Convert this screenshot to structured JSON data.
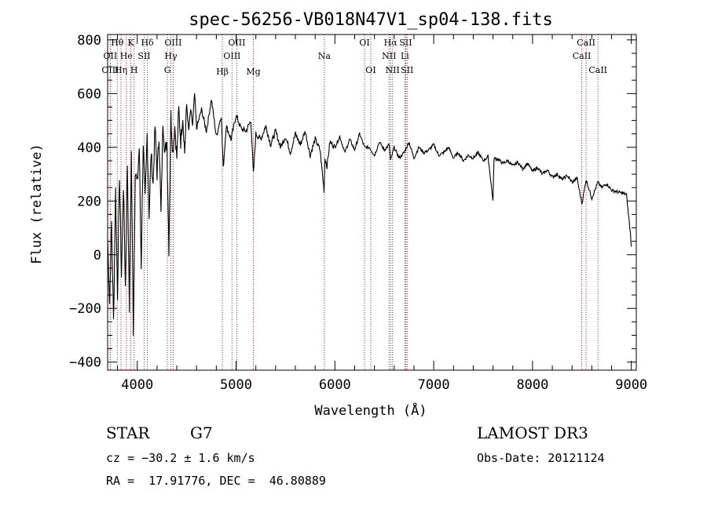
{
  "chart_data": {
    "type": "line",
    "title": "spec-56256-VB018N47V1_sp04-138.fits",
    "xlabel": "Wavelength (Å)",
    "ylabel": "Flux (relative)",
    "xlim": [
      3700,
      9050
    ],
    "ylim": [
      -430,
      820
    ],
    "xticks": [
      4000,
      5000,
      6000,
      7000,
      8000,
      9000
    ],
    "xtick_labels": [
      "4000",
      "5000",
      "6000",
      "7000",
      "8000",
      "9000"
    ],
    "yticks": [
      -400,
      -200,
      0,
      200,
      400,
      600,
      800
    ],
    "ytick_labels": [
      "−400",
      "−200",
      "0",
      "200",
      "400",
      "600",
      "800"
    ],
    "series": [
      {
        "name": "flux",
        "x": [
          3700,
          3720,
          3740,
          3760,
          3780,
          3800,
          3820,
          3840,
          3860,
          3880,
          3900,
          3920,
          3940,
          3960,
          3980,
          4000,
          4020,
          4040,
          4060,
          4080,
          4100,
          4120,
          4140,
          4160,
          4180,
          4200,
          4220,
          4240,
          4260,
          4280,
          4300,
          4320,
          4340,
          4360,
          4380,
          4400,
          4420,
          4440,
          4460,
          4480,
          4500,
          4520,
          4540,
          4560,
          4580,
          4600,
          4650,
          4700,
          4750,
          4800,
          4850,
          4870,
          4900,
          4950,
          5000,
          5050,
          5100,
          5150,
          5175,
          5200,
          5250,
          5300,
          5350,
          5400,
          5450,
          5500,
          5550,
          5600,
          5650,
          5700,
          5750,
          5800,
          5850,
          5890,
          5900,
          5920,
          5950,
          6000,
          6050,
          6100,
          6150,
          6200,
          6250,
          6300,
          6350,
          6400,
          6450,
          6500,
          6550,
          6563,
          6600,
          6650,
          6700,
          6750,
          6800,
          6850,
          6900,
          6950,
          7000,
          7050,
          7100,
          7150,
          7200,
          7250,
          7300,
          7350,
          7400,
          7450,
          7500,
          7550,
          7600,
          7610,
          7650,
          7700,
          7750,
          7800,
          7850,
          7900,
          7950,
          8000,
          8050,
          8100,
          8150,
          8200,
          8250,
          8300,
          8350,
          8400,
          8450,
          8500,
          8542,
          8600,
          8662,
          8700,
          8750,
          8800,
          8850,
          8900,
          8950,
          8990,
          9000
        ],
        "values": [
          60,
          -180,
          120,
          -250,
          240,
          -150,
          300,
          -80,
          260,
          -120,
          340,
          -200,
          380,
          -280,
          320,
          260,
          400,
          -40,
          420,
          200,
          450,
          150,
          380,
          260,
          480,
          300,
          450,
          150,
          500,
          380,
          420,
          20,
          520,
          380,
          480,
          360,
          540,
          420,
          520,
          380,
          560,
          460,
          540,
          480,
          600,
          470,
          540,
          460,
          580,
          440,
          520,
          320,
          480,
          430,
          520,
          470,
          460,
          500,
          300,
          450,
          430,
          480,
          410,
          460,
          400,
          440,
          380,
          450,
          410,
          460,
          370,
          430,
          390,
          240,
          360,
          330,
          420,
          400,
          440,
          380,
          430,
          390,
          450,
          400,
          400,
          370,
          420,
          390,
          410,
          350,
          400,
          360,
          380,
          420,
          360,
          400,
          380,
          390,
          410,
          370,
          380,
          400,
          360,
          380,
          350,
          370,
          360,
          380,
          350,
          365,
          200,
          360,
          355,
          340,
          350,
          330,
          345,
          320,
          340,
          310,
          325,
          300,
          315,
          290,
          300,
          280,
          295,
          270,
          285,
          190,
          280,
          210,
          270,
          250,
          265,
          240,
          235,
          230,
          225,
          80,
          30
        ]
      }
    ],
    "spectral_lines": [
      {
        "label": "Hθ",
        "x": 3798,
        "row": 0
      },
      {
        "label": "OII",
        "x": 3727,
        "row": 1
      },
      {
        "label": "OIII",
        "x": 3727,
        "row": 2
      },
      {
        "label": "K",
        "x": 3934,
        "row": 0
      },
      {
        "label": "He",
        "x": 3889,
        "row": 1
      },
      {
        "label": "Hη",
        "x": 3835,
        "row": 2
      },
      {
        "label": "Hδ",
        "x": 4102,
        "row": 0
      },
      {
        "label": "SII",
        "x": 4070,
        "row": 1
      },
      {
        "label": "H",
        "x": 3968,
        "row": 2
      },
      {
        "label": "OIII",
        "x": 4363,
        "row": 0
      },
      {
        "label": "Hγ",
        "x": 4340,
        "row": 1
      },
      {
        "label": "G",
        "x": 4305,
        "row": 2
      },
      {
        "label": "OIII",
        "x": 5007,
        "row": 0
      },
      {
        "label": "OIII",
        "x": 4959,
        "row": 1
      },
      {
        "label": "Hβ",
        "x": 4861,
        "row": 3
      },
      {
        "label": "Mg",
        "x": 5175,
        "row": 3
      },
      {
        "label": "Na",
        "x": 5893,
        "row": 1
      },
      {
        "label": "OI",
        "x": 6300,
        "row": 0
      },
      {
        "label": "OI",
        "x": 6363,
        "row": 2
      },
      {
        "label": "Hα",
        "x": 6563,
        "row": 0
      },
      {
        "label": "NII",
        "x": 6548,
        "row": 1
      },
      {
        "label": "NII",
        "x": 6583,
        "row": 2
      },
      {
        "label": "SII",
        "x": 6717,
        "row": 0
      },
      {
        "label": "Li",
        "x": 6708,
        "row": 1
      },
      {
        "label": "SII",
        "x": 6731,
        "row": 2
      },
      {
        "label": "CaII",
        "x": 8542,
        "row": 0
      },
      {
        "label": "CaII",
        "x": 8498,
        "row": 1
      },
      {
        "label": "CaII",
        "x": 8662,
        "row": 2
      }
    ]
  },
  "info": {
    "object_type": "STAR",
    "subclass": "G7",
    "survey": "LAMOST DR3",
    "cz": "cz = −30.2 ± 1.6 km/s",
    "obs_date": "Obs-Date: 20121124",
    "coords": "RA =  17.91776, DEC =  46.80889"
  },
  "colors": {
    "axes": "#000000",
    "spectrum": "#000000",
    "line_markers": "#b22222"
  }
}
